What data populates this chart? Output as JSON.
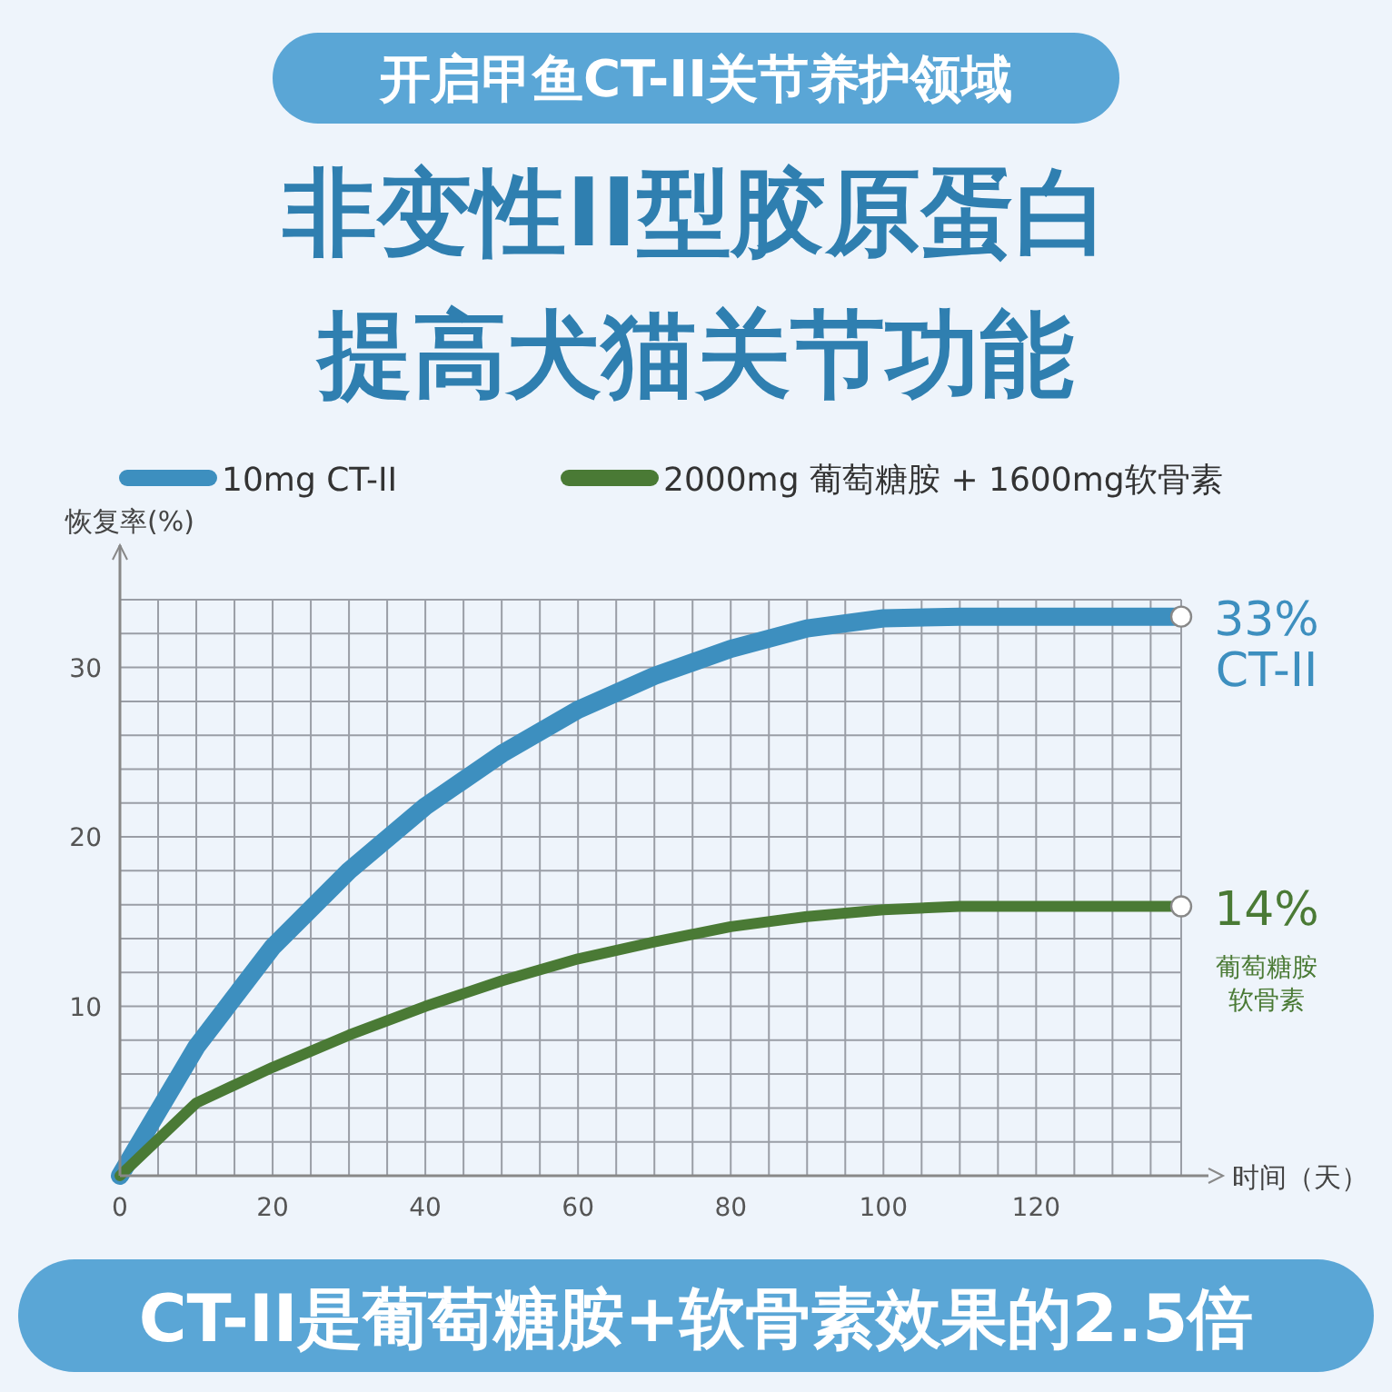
{
  "chart_data": {
    "type": "line",
    "title": "开启甲鱼CT-II关节养护领域",
    "subtitle": "非变性II型胶原蛋白提高犬猫关节功能",
    "xlabel": "时间（天）",
    "ylabel": "恢复率(%)",
    "xlim": [
      0,
      139
    ],
    "ylim": [
      0,
      34
    ],
    "xticks": [
      0,
      20,
      40,
      60,
      80,
      100,
      120
    ],
    "yticks": [
      10,
      20,
      30
    ],
    "grid": true,
    "legend": "top",
    "series": [
      {
        "name": "10mg CT-II",
        "color": "#3d8fbf",
        "x": [
          0,
          10,
          20,
          30,
          40,
          50,
          60,
          70,
          80,
          90,
          100,
          110,
          139
        ],
        "values": [
          0,
          7.6,
          13.5,
          18,
          21.8,
          24.9,
          27.5,
          29.5,
          31.1,
          32.3,
          32.9,
          33,
          33
        ]
      },
      {
        "name": "2000mg 葡萄糖胺 + 1600mg软骨素",
        "color": "#4a7a35",
        "x": [
          0,
          10,
          20,
          30,
          40,
          50,
          60,
          70,
          80,
          90,
          100,
          110,
          139
        ],
        "values": [
          0,
          4.3,
          6.4,
          8.3,
          10,
          11.5,
          12.8,
          13.8,
          14.7,
          15.3,
          15.7,
          15.9,
          15.9
        ]
      }
    ],
    "annotations": [
      {
        "text": "33%\nCT-II",
        "x": 139,
        "y": 33
      },
      {
        "text": "14%\n葡萄糖胺软骨素",
        "x": 139,
        "y": 15.9
      },
      "CT-II是葡萄糖胺+软骨素效果的2.5倍"
    ]
  }
}
